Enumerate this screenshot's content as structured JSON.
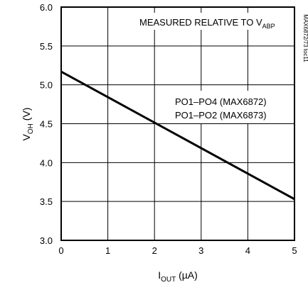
{
  "chart_data": {
    "type": "line",
    "title": "",
    "xlabel": {
      "main": "I",
      "sub": "OUT",
      "unit": " (µA)"
    },
    "ylabel": {
      "main": "V",
      "sub": "OH",
      "unit": " (V)"
    },
    "xlim": [
      0,
      5
    ],
    "ylim": [
      3.0,
      6.0
    ],
    "xticks": [
      0,
      1,
      2,
      3,
      4,
      5
    ],
    "xtick_labels": [
      "0",
      "1",
      "2",
      "3",
      "4",
      "5"
    ],
    "yticks": [
      3.0,
      3.5,
      4.0,
      4.5,
      5.0,
      5.5,
      6.0
    ],
    "ytick_labels": [
      "3.0",
      "3.5",
      "4.0",
      "4.5",
      "5.0",
      "5.5",
      "6.0"
    ],
    "grid": true,
    "series": [
      {
        "x": [
          0,
          5
        ],
        "y": [
          5.17,
          3.53
        ]
      }
    ],
    "annotations": {
      "top": {
        "main": "MEASURED RELATIVE TO V",
        "sub": "ABP"
      },
      "legend_line1": "PO1–PO4 (MAX6872)",
      "legend_line2": "PO1–PO2 (MAX6873)",
      "side_label": "MAX6872/73 toc11"
    }
  }
}
